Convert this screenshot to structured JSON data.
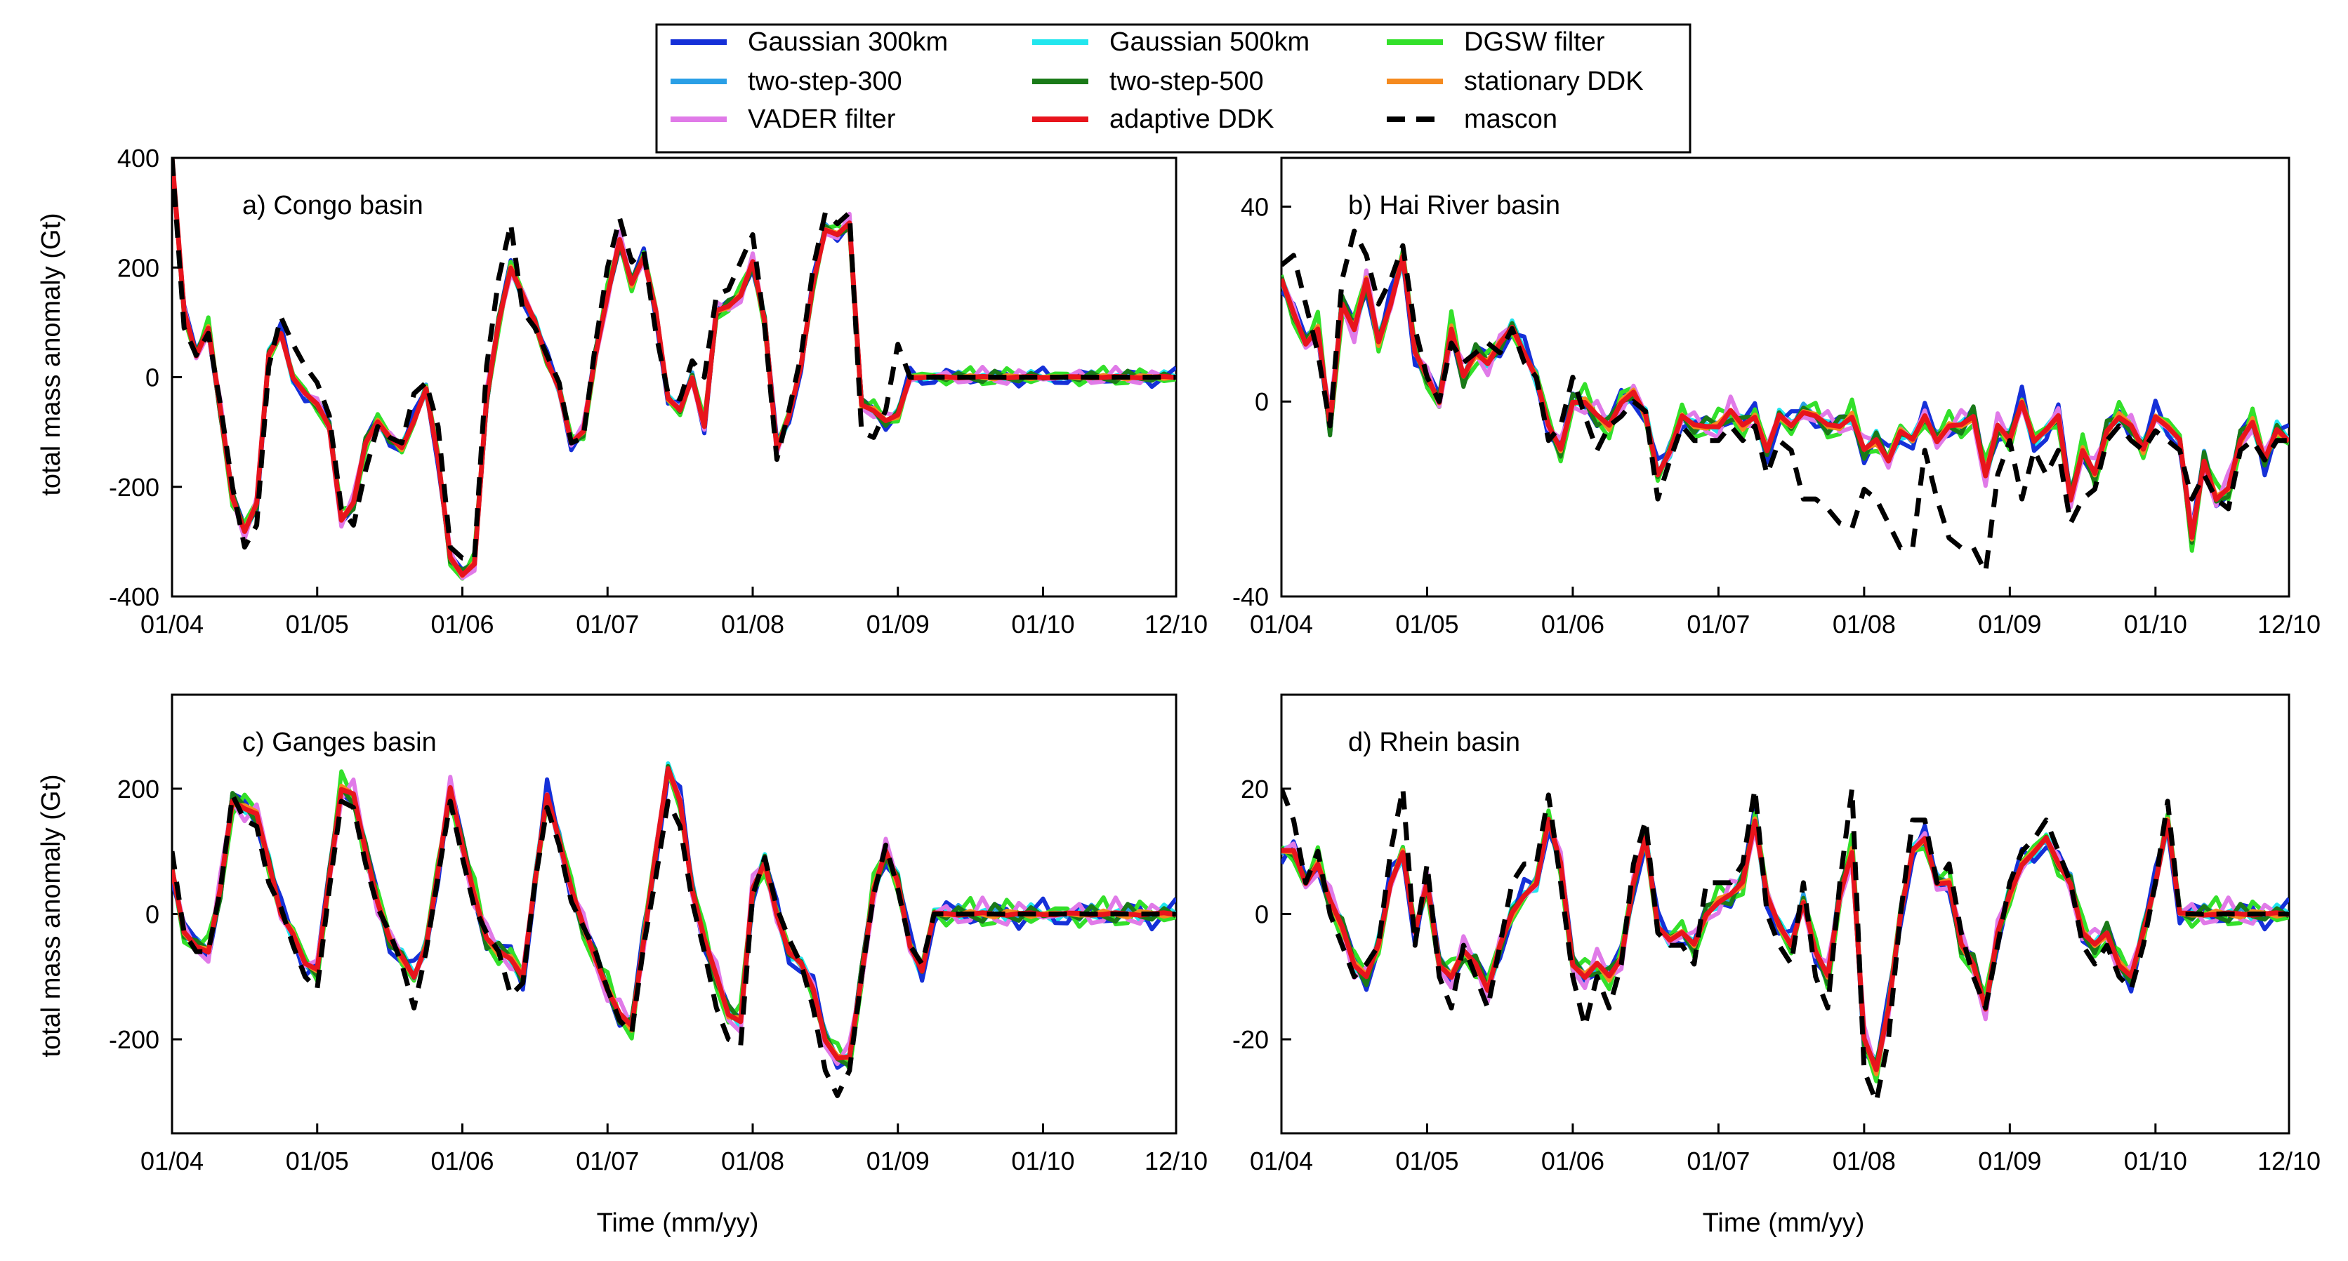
{
  "figure": {
    "time_axis_label": "Time (mm/yy)",
    "y_axis_label": "total mass anomaly (Gt)",
    "x_tick_labels": [
      "01/04",
      "01/05",
      "01/06",
      "01/07",
      "01/08",
      "01/09",
      "01/10",
      "12/10"
    ],
    "x_tick_months": [
      0,
      12,
      24,
      36,
      48,
      60,
      72,
      83
    ]
  },
  "legend": {
    "location": "top-center",
    "entries": [
      {
        "key": "g300",
        "label": "Gaussian 300km",
        "color": "#1530d8",
        "dash": false
      },
      {
        "key": "g500",
        "label": "Gaussian 500km",
        "color": "#22e6ee",
        "dash": false
      },
      {
        "key": "dgsw",
        "label": "DGSW filter",
        "color": "#33e02a",
        "dash": false
      },
      {
        "key": "ts300",
        "label": "two-step-300",
        "color": "#2a9fe6",
        "dash": false
      },
      {
        "key": "ts500",
        "label": "two-step-500",
        "color": "#1a7a18",
        "dash": false
      },
      {
        "key": "sddk",
        "label": "stationary DDK",
        "color": "#f58a1f",
        "dash": false
      },
      {
        "key": "vader",
        "label": "VADER filter",
        "color": "#e07ae8",
        "dash": false
      },
      {
        "key": "addk",
        "label": "adaptive DDK",
        "color": "#e8141c",
        "dash": false
      },
      {
        "key": "mascon",
        "label": "mascon",
        "color": "#000000",
        "dash": true
      }
    ]
  },
  "chart_data": [
    {
      "type": "line",
      "id": "a",
      "title": "a) Congo basin",
      "xlabel": "",
      "ylabel": "total mass anomaly (Gt)",
      "ylim": [
        -400,
        400
      ],
      "yticks": [
        -400,
        -200,
        0,
        200,
        400
      ],
      "xlim": [
        0,
        83
      ],
      "months": [
        0,
        1,
        2,
        3,
        4,
        5,
        6,
        7,
        8,
        9,
        10,
        11,
        12,
        13,
        14,
        15,
        16,
        17,
        18,
        19,
        20,
        21,
        22,
        23,
        24,
        25,
        26,
        27,
        28,
        29,
        30,
        31,
        32,
        33,
        34,
        35,
        36,
        37,
        38,
        39,
        40,
        41,
        42,
        43,
        44,
        45,
        46,
        47,
        48,
        49,
        50,
        51,
        52,
        53,
        54,
        55,
        56,
        57,
        58,
        59,
        60,
        61,
        62,
        63,
        64,
        65,
        66,
        67,
        68,
        69,
        70,
        71,
        72,
        73,
        74,
        75,
        76,
        77,
        78,
        79,
        80,
        81,
        82,
        83
      ],
      "base": [
        400,
        120,
        40,
        90,
        -60,
        -220,
        -280,
        -230,
        40,
        80,
        0,
        -30,
        -50,
        -90,
        -260,
        -230,
        -120,
        -80,
        -110,
        -130,
        -80,
        -20,
        -150,
        -330,
        -360,
        -340,
        -40,
        100,
        200,
        150,
        100,
        30,
        -20,
        -120,
        -100,
        40,
        150,
        250,
        170,
        220,
        120,
        -40,
        -60,
        0,
        -90,
        120,
        130,
        150,
        210,
        100,
        -130,
        -70,
        20,
        170,
        270,
        260,
        280,
        -50,
        -60,
        -80,
        -70,
        0,
        0,
        0,
        0,
        0,
        0,
        0,
        0,
        0,
        0,
        0,
        0,
        0,
        0,
        0,
        0,
        0,
        0,
        0,
        0,
        0,
        0,
        0
      ],
      "mascon": [
        400,
        90,
        40,
        80,
        -50,
        -200,
        -310,
        -270,
        20,
        110,
        60,
        20,
        -10,
        -70,
        -240,
        -270,
        -170,
        -90,
        -110,
        -120,
        -30,
        -10,
        -90,
        -310,
        -330,
        -330,
        20,
        180,
        280,
        120,
        90,
        40,
        -10,
        -120,
        -110,
        60,
        200,
        290,
        210,
        230,
        80,
        -30,
        -40,
        30,
        0,
        150,
        160,
        210,
        260,
        90,
        -150,
        -60,
        40,
        200,
        300,
        280,
        300,
        -100,
        -110,
        -60,
        60,
        0,
        0,
        0,
        0,
        0,
        0,
        0,
        0,
        0,
        0,
        0,
        0,
        0,
        0,
        0,
        0,
        0,
        0,
        0,
        0,
        0,
        0,
        0
      ],
      "series_spread": 1.0
    },
    {
      "type": "line",
      "id": "b",
      "title": "b) Hai River basin",
      "xlabel": "",
      "ylabel": "",
      "ylim": [
        -40,
        50
      ],
      "yticks": [
        -40,
        0,
        40
      ],
      "xlim": [
        0,
        83
      ],
      "base": [
        25,
        18,
        12,
        15,
        -5,
        20,
        15,
        25,
        12,
        20,
        30,
        10,
        5,
        0,
        15,
        5,
        10,
        8,
        12,
        15,
        10,
        5,
        -5,
        -10,
        0,
        0,
        -3,
        -5,
        0,
        2,
        -3,
        -15,
        -10,
        -3,
        -5,
        -5,
        -5,
        -2,
        -5,
        -3,
        -10,
        -3,
        -5,
        -2,
        -3,
        -5,
        -5,
        -3,
        -10,
        -8,
        -12,
        -6,
        -8,
        -3,
        -8,
        -5,
        -5,
        -3,
        -15,
        -5,
        -8,
        0,
        -8,
        -6,
        -3,
        -20,
        -10,
        -15,
        -6,
        -3,
        -5,
        -10,
        -3,
        -5,
        -8,
        -28,
        -12,
        -20,
        -18,
        -8,
        -4,
        -12,
        -6,
        -8
      ],
      "mascon": [
        28,
        30,
        20,
        10,
        -5,
        25,
        35,
        30,
        20,
        25,
        32,
        15,
        5,
        0,
        12,
        8,
        10,
        12,
        10,
        15,
        8,
        5,
        -8,
        -5,
        5,
        -3,
        -10,
        -5,
        -3,
        0,
        -2,
        -20,
        -12,
        -5,
        -8,
        -8,
        -8,
        -5,
        -8,
        -5,
        -15,
        -8,
        -10,
        -20,
        -20,
        -22,
        -25,
        -26,
        -18,
        -20,
        -25,
        -30,
        -30,
        -10,
        -20,
        -28,
        -30,
        -30,
        -35,
        -15,
        -8,
        -20,
        -10,
        -15,
        -10,
        -25,
        -20,
        -18,
        -8,
        -5,
        -8,
        -10,
        -6,
        -8,
        -10,
        -20,
        -15,
        -20,
        -22,
        -10,
        -8,
        -12,
        -8,
        -8
      ],
      "series_spread": 0.18
    },
    {
      "type": "line",
      "id": "c",
      "title": "c) Ganges basin",
      "xlabel": "Time (mm/yy)",
      "ylabel": "total mass anomaly (Gt)",
      "ylim": [
        -350,
        350
      ],
      "yticks": [
        -200,
        0,
        200
      ],
      "xlim": [
        0,
        83
      ],
      "base": [
        70,
        -30,
        -50,
        -60,
        40,
        180,
        170,
        160,
        80,
        0,
        -30,
        -80,
        -90,
        60,
        200,
        190,
        100,
        20,
        -40,
        -70,
        -100,
        -50,
        70,
        200,
        110,
        30,
        -40,
        -60,
        -70,
        -100,
        50,
        190,
        120,
        40,
        -20,
        -70,
        -120,
        -160,
        -180,
        -40,
        100,
        230,
        180,
        40,
        -40,
        -100,
        -160,
        -170,
        40,
        80,
        0,
        -60,
        -80,
        -120,
        -200,
        -230,
        -230,
        -100,
        40,
        100,
        50,
        -50,
        -90,
        0,
        0,
        0,
        0,
        0,
        0,
        0,
        0,
        0,
        0,
        0,
        0,
        0,
        0,
        0,
        0,
        0,
        0,
        0,
        0,
        0
      ],
      "mascon": [
        100,
        -30,
        -60,
        -60,
        40,
        190,
        150,
        140,
        50,
        10,
        -50,
        -100,
        -120,
        40,
        180,
        170,
        80,
        10,
        -30,
        -80,
        -150,
        -60,
        60,
        180,
        90,
        10,
        -30,
        -60,
        -130,
        -110,
        50,
        170,
        110,
        20,
        -20,
        -60,
        -120,
        -170,
        -190,
        -50,
        60,
        180,
        140,
        20,
        -60,
        -150,
        -200,
        -210,
        30,
        90,
        10,
        -40,
        -80,
        -150,
        -250,
        -290,
        -250,
        -100,
        30,
        110,
        40,
        -50,
        -80,
        0,
        0,
        0,
        0,
        0,
        0,
        0,
        0,
        0,
        0,
        0,
        0,
        0,
        0,
        0,
        0,
        0,
        0,
        0,
        0,
        0
      ],
      "series_spread": 0.2
    },
    {
      "type": "line",
      "id": "d",
      "title": "d) Rhein basin",
      "xlabel": "Time (mm/yy)",
      "ylabel": "",
      "ylim": [
        -35,
        35
      ],
      "yticks": [
        -20,
        0,
        20
      ],
      "xlim": [
        0,
        83
      ],
      "base": [
        10,
        10,
        5,
        8,
        2,
        -2,
        -8,
        -10,
        -5,
        5,
        10,
        -3,
        5,
        -8,
        -10,
        -6,
        -8,
        -12,
        -5,
        0,
        3,
        5,
        15,
        8,
        -8,
        -10,
        -8,
        -10,
        -7,
        5,
        12,
        -2,
        -4,
        -3,
        -5,
        0,
        2,
        3,
        5,
        15,
        3,
        -2,
        -5,
        2,
        -6,
        -10,
        3,
        10,
        -20,
        -25,
        -15,
        0,
        10,
        12,
        5,
        5,
        -5,
        -8,
        -15,
        -3,
        3,
        8,
        10,
        12,
        8,
        5,
        -3,
        -5,
        -3,
        -8,
        -10,
        -3,
        5,
        15,
        0,
        0,
        0,
        0,
        0,
        0,
        0,
        0,
        0,
        0
      ],
      "mascon": [
        20,
        15,
        5,
        10,
        0,
        -5,
        -10,
        -8,
        -5,
        10,
        20,
        -5,
        8,
        -10,
        -15,
        -5,
        -10,
        -15,
        -5,
        5,
        8,
        8,
        19,
        5,
        -10,
        -18,
        -10,
        -15,
        -8,
        8,
        15,
        -3,
        -5,
        -5,
        -8,
        5,
        5,
        5,
        8,
        20,
        0,
        -5,
        -8,
        5,
        -10,
        -15,
        5,
        20,
        -25,
        -30,
        -20,
        0,
        15,
        15,
        5,
        8,
        -3,
        -10,
        -15,
        -5,
        5,
        10,
        12,
        15,
        10,
        5,
        -5,
        -8,
        -5,
        -10,
        -12,
        -5,
        5,
        18,
        0,
        0,
        0,
        0,
        0,
        0,
        0,
        0,
        0,
        0
      ],
      "series_spread": 0.2
    }
  ]
}
